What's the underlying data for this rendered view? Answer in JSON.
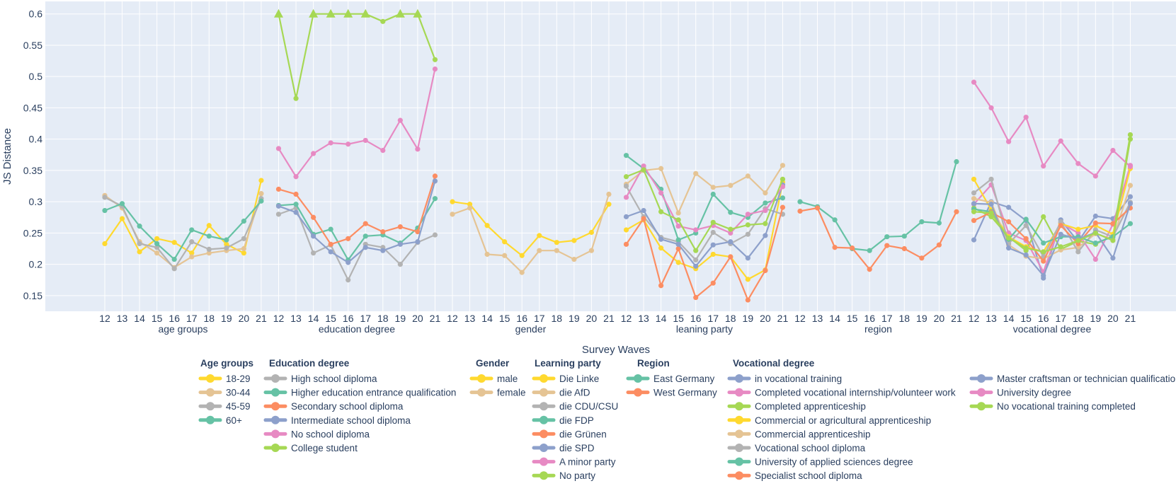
{
  "chart_data": {
    "type": "line",
    "ylabel": "JS Distance",
    "xlabel": "Survey Waves",
    "ylim": [
      0.125,
      0.62
    ],
    "yticks": [
      0.15,
      0.2,
      0.25,
      0.3,
      0.35,
      0.4,
      0.45,
      0.5,
      0.55,
      0.6
    ],
    "ytick_labels": [
      "0.15",
      "0.2",
      "0.25",
      "0.3",
      "0.35",
      "0.4",
      "0.45",
      "0.5",
      "0.55",
      "0.6"
    ],
    "waves": [
      "12",
      "13",
      "14",
      "15",
      "16",
      "17",
      "18",
      "19",
      "20",
      "21"
    ],
    "panels": [
      {
        "label": "age groups",
        "legend_title": "Age groups",
        "series": [
          {
            "name": "18-29",
            "color": "#ffd92f",
            "values": [
              0.233,
              0.273,
              0.22,
              0.241,
              0.235,
              0.218,
              0.262,
              0.232,
              0.218,
              0.334
            ]
          },
          {
            "name": "30-44",
            "color": "#e5c494",
            "values": [
              0.31,
              0.29,
              0.236,
              0.218,
              0.195,
              0.212,
              0.218,
              0.222,
              0.225,
              0.313
            ]
          },
          {
            "name": "45-59",
            "color": "#b3b3b3",
            "values": [
              0.307,
              0.293,
              0.233,
              0.227,
              0.193,
              0.236,
              0.224,
              0.226,
              0.241,
              0.305
            ]
          },
          {
            "name": "60+",
            "color": "#66c2a5",
            "values": [
              0.286,
              0.297,
              0.261,
              0.233,
              0.208,
              0.255,
              0.245,
              0.239,
              0.269,
              0.301
            ]
          }
        ]
      },
      {
        "label": "education degree",
        "legend_title": "Education degree",
        "series": [
          {
            "name": "High school diploma",
            "color": "#b3b3b3",
            "values": [
              0.28,
              0.29,
              0.218,
              0.231,
              0.175,
              0.232,
              0.227,
              0.2,
              0.235,
              0.247
            ]
          },
          {
            "name": "Higher education entrance qualification",
            "color": "#66c2a5",
            "values": [
              0.294,
              0.296,
              0.248,
              0.256,
              0.207,
              0.245,
              0.247,
              0.234,
              0.258,
              0.305
            ]
          },
          {
            "name": "Secondary school diploma",
            "color": "#fc8d62",
            "values": [
              0.32,
              0.312,
              0.275,
              0.232,
              0.241,
              0.265,
              0.252,
              0.26,
              0.252,
              0.341
            ]
          },
          {
            "name": "Intermediate school diploma",
            "color": "#8da0cb",
            "values": [
              0.293,
              0.283,
              0.245,
              0.22,
              0.203,
              0.227,
              0.222,
              0.232,
              0.236,
              0.333
            ]
          },
          {
            "name": "No school diploma",
            "color": "#e78ac3",
            "values": [
              0.385,
              0.34,
              0.377,
              0.394,
              0.392,
              0.398,
              0.382,
              0.43,
              0.384,
              0.512
            ]
          },
          {
            "name": "College student",
            "color": "#a6d854",
            "values": [
              0.6,
              0.465,
              0.6,
              0.6,
              0.6,
              0.6,
              0.588,
              0.6,
              0.6,
              0.527
            ]
          }
        ]
      },
      {
        "label": "gender",
        "legend_title": "Gender",
        "series": [
          {
            "name": "male",
            "color": "#ffd92f",
            "values": [
              0.3,
              0.296,
              0.262,
              0.236,
              0.214,
              0.246,
              0.235,
              0.238,
              0.251,
              0.296
            ]
          },
          {
            "name": "female",
            "color": "#e5c494",
            "values": [
              0.28,
              0.29,
              0.216,
              0.214,
              0.187,
              0.222,
              0.222,
              0.208,
              0.222,
              0.312
            ]
          }
        ]
      },
      {
        "label": "leaning party",
        "legend_title": "Learning party",
        "series": [
          {
            "name": "Die Linke",
            "color": "#ffd92f",
            "values": [
              0.255,
              0.271,
              0.226,
              0.203,
              0.193,
              0.216,
              0.212,
              0.176,
              0.191,
              0.331
            ]
          },
          {
            "name": "die AfD",
            "color": "#e5c494",
            "values": [
              0.328,
              0.35,
              0.353,
              0.282,
              0.345,
              0.323,
              0.326,
              0.341,
              0.314,
              0.358
            ]
          },
          {
            "name": "die CDU/CSU",
            "color": "#b3b3b3",
            "values": [
              0.325,
              0.276,
              0.243,
              0.236,
              0.207,
              0.251,
              0.233,
              0.248,
              0.289,
              0.28
            ]
          },
          {
            "name": "die FDP",
            "color": "#66c2a5",
            "values": [
              0.374,
              0.353,
              0.32,
              0.239,
              0.25,
              0.312,
              0.283,
              0.275,
              0.298,
              0.306
            ]
          },
          {
            "name": "die Grünen",
            "color": "#fc8d62",
            "values": [
              0.232,
              0.273,
              0.166,
              0.225,
              0.147,
              0.17,
              0.212,
              0.143,
              0.19,
              0.291
            ]
          },
          {
            "name": "die SPD",
            "color": "#8da0cb",
            "values": [
              0.276,
              0.286,
              0.24,
              0.232,
              0.197,
              0.231,
              0.236,
              0.21,
              0.246,
              0.327
            ]
          },
          {
            "name": "A minor party",
            "color": "#e78ac3",
            "values": [
              0.307,
              0.357,
              0.314,
              0.261,
              0.255,
              0.262,
              0.25,
              0.28,
              0.286,
              0.324
            ]
          },
          {
            "name": "No party",
            "color": "#a6d854",
            "values": [
              0.34,
              0.351,
              0.284,
              0.271,
              0.222,
              0.267,
              0.256,
              0.263,
              0.265,
              0.336
            ]
          }
        ]
      },
      {
        "label": "region",
        "legend_title": "Region",
        "series": [
          {
            "name": "East Germany",
            "color": "#66c2a5",
            "values": [
              0.3,
              0.292,
              0.271,
              0.225,
              0.222,
              0.244,
              0.245,
              0.268,
              0.266,
              0.364
            ]
          },
          {
            "name": "West Germany",
            "color": "#fc8d62",
            "values": [
              0.285,
              0.29,
              0.227,
              0.226,
              0.192,
              0.23,
              0.225,
              0.21,
              0.231,
              0.284
            ]
          }
        ]
      },
      {
        "label": "vocational degree",
        "legend_title": "Vocational degree",
        "series": [
          {
            "name": "in vocational training",
            "color": "#8da0cb",
            "values": [
              0.239,
              0.3,
              0.291,
              0.27,
              0.178,
              0.271,
              0.236,
              0.277,
              0.273,
              0.308
            ]
          },
          {
            "name": "Completed vocational internship/volunteer work",
            "color": "#e78ac3",
            "values": [
              0.296,
              0.327,
              0.25,
              0.238,
              0.188,
              0.266,
              0.25,
              0.208,
              0.264,
              0.358
            ]
          },
          {
            "name": "Completed apprenticeship",
            "color": "#a6d854",
            "values": [
              0.29,
              0.276,
              0.244,
              0.222,
              0.276,
              0.224,
              0.237,
              0.232,
              0.246,
              0.407
            ]
          },
          {
            "name": "Commercial or agricultural apprenticeship",
            "color": "#ffd92f",
            "values": [
              0.336,
              0.287,
              0.244,
              0.228,
              0.22,
              0.265,
              0.256,
              0.262,
              0.248,
              0.353
            ]
          },
          {
            "name": "Commercial apprenticeship",
            "color": "#e5c494",
            "values": [
              0.305,
              0.299,
              0.231,
              0.213,
              0.209,
              0.223,
              0.227,
              0.249,
              0.24,
              0.326
            ]
          },
          {
            "name": "Vocational school diploma",
            "color": "#b3b3b3",
            "values": [
              0.314,
              0.336,
              0.233,
              0.262,
              0.212,
              0.268,
              0.22,
              0.255,
              0.244,
              0.299
            ]
          },
          {
            "name": "University of applied sciences degree",
            "color": "#66c2a5",
            "values": [
              0.288,
              0.284,
              0.24,
              0.272,
              0.234,
              0.244,
              0.244,
              0.234,
              0.244,
              0.265
            ]
          },
          {
            "name": "Specialist school diploma",
            "color": "#fc8d62",
            "values": [
              0.27,
              0.283,
              0.268,
              0.241,
              0.205,
              0.262,
              0.233,
              0.266,
              0.265,
              0.29
            ]
          },
          {
            "name": "Master craftsman or technician qualification",
            "color": "#8da0cb",
            "values": [
              0.297,
              0.296,
              0.226,
              0.215,
              0.182,
              0.248,
              0.24,
              0.251,
              0.21,
              0.297
            ]
          },
          {
            "name": "University degree",
            "color": "#e78ac3",
            "values": [
              0.491,
              0.45,
              0.396,
              0.435,
              0.357,
              0.397,
              0.361,
              0.341,
              0.382,
              0.356
            ]
          },
          {
            "name": "No vocational training completed",
            "color": "#a6d854",
            "values": [
              0.284,
              0.282,
              0.242,
              0.226,
              0.22,
              0.228,
              0.238,
              0.25,
              0.238,
              0.4
            ]
          }
        ]
      }
    ],
    "clipped_marker_series": "College student",
    "legend": {
      "placement": "bottom-center"
    }
  }
}
